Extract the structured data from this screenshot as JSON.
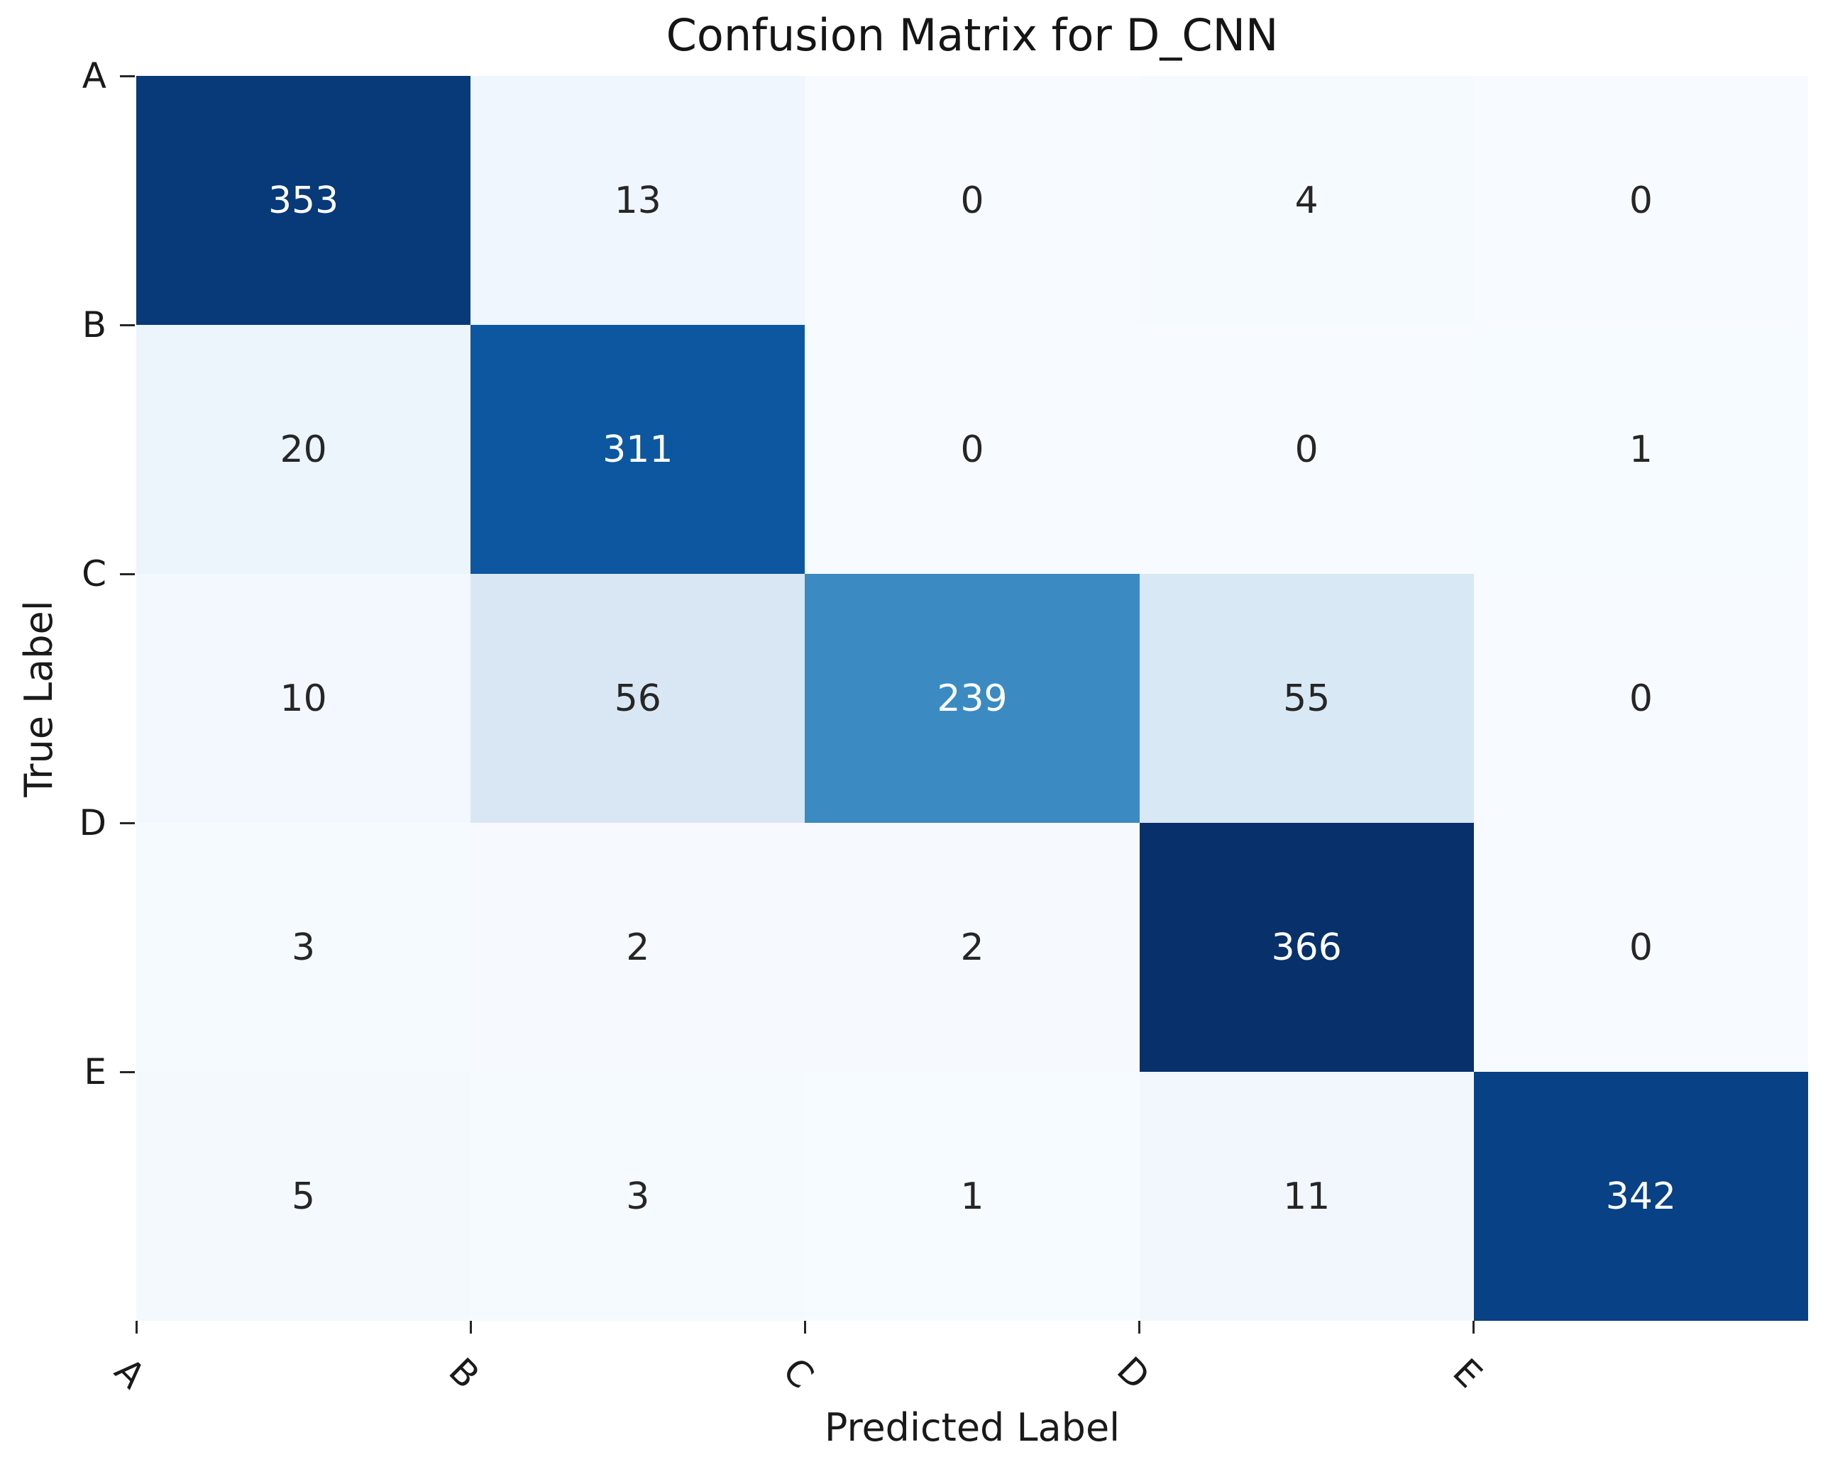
{
  "title": "Confusion Matrix for D_CNN",
  "chart_data": {
    "type": "heatmap",
    "title": "Confusion Matrix for D_CNN",
    "xlabel": "Predicted Label",
    "ylabel": "True Label",
    "row_labels": [
      "A",
      "B",
      "C",
      "D",
      "E"
    ],
    "col_labels": [
      "A",
      "B",
      "C",
      "D",
      "E"
    ],
    "matrix": [
      [
        353,
        13,
        0,
        4,
        0
      ],
      [
        20,
        311,
        0,
        0,
        1
      ],
      [
        10,
        56,
        239,
        55,
        0
      ],
      [
        3,
        2,
        2,
        366,
        0
      ],
      [
        5,
        3,
        1,
        11,
        342
      ]
    ],
    "vmin": 0,
    "vmax": 366,
    "colormap": "Blues",
    "colormap_stops": [
      "#f7fbff",
      "#deebf7",
      "#c6dbef",
      "#9ecae1",
      "#6baed6",
      "#4292c6",
      "#2171b5",
      "#08519c",
      "#08306b"
    ],
    "annotation_color_on_dark": "#ffffff",
    "annotation_color_on_light": "#262626",
    "axis_text_color": "#1a1a1a",
    "x_tick_rotation_deg": 45,
    "colorbar": false,
    "grid": false,
    "legend_position": "none"
  }
}
